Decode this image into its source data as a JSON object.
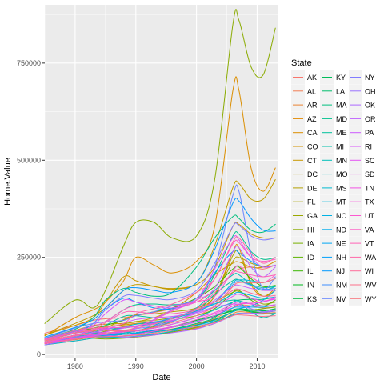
{
  "chart_data": {
    "type": "line",
    "xlabel": "Date",
    "ylabel": "Home.Value",
    "xlim": [
      1975,
      2013.5
    ],
    "ylim": [
      -10000,
      900000
    ],
    "x_ticks": [
      1980,
      1990,
      2000,
      2010
    ],
    "x_tick_labels": [
      "1980",
      "1990",
      "2000",
      "2010"
    ],
    "y_ticks": [
      0,
      250000,
      500000,
      750000
    ],
    "y_tick_labels": [
      "0",
      "250000",
      "500000",
      "750000"
    ],
    "grid": true,
    "legend": {
      "title": "State",
      "placement": "right",
      "columns": 3
    },
    "x": [
      1975,
      1980,
      1983,
      1985,
      1988,
      1990,
      1993,
      1996,
      2000,
      2003,
      2006,
      2007,
      2009,
      2011,
      2013
    ],
    "series": [
      {
        "name": "AK",
        "color": "#F8766D",
        "values": [
          55000,
          75000,
          88000,
          92000,
          95000,
          100000,
          108000,
          118000,
          135000,
          165000,
          210000,
          220000,
          225000,
          220000,
          230000
        ]
      },
      {
        "name": "AL",
        "color": "#F27D53",
        "values": [
          28000,
          38000,
          45000,
          48000,
          52000,
          56000,
          60000,
          66000,
          78000,
          92000,
          120000,
          128000,
          125000,
          120000,
          122000
        ]
      },
      {
        "name": "AR",
        "color": "#EA8331",
        "values": [
          25000,
          35000,
          42000,
          45000,
          48000,
          50000,
          53000,
          58000,
          68000,
          80000,
          105000,
          110000,
          108000,
          106000,
          108000
        ]
      },
      {
        "name": "AZ",
        "color": "#E38900",
        "values": [
          38000,
          58000,
          68000,
          72000,
          76000,
          80000,
          84000,
          92000,
          118000,
          150000,
          265000,
          275000,
          180000,
          150000,
          170000
        ]
      },
      {
        "name": "CA",
        "color": "#DB8E00",
        "values": [
          48000,
          95000,
          115000,
          135000,
          190000,
          250000,
          230000,
          210000,
          240000,
          330000,
          680000,
          680000,
          480000,
          420000,
          480000
        ]
      },
      {
        "name": "CO",
        "color": "#D39200",
        "values": [
          40000,
          62000,
          75000,
          78000,
          80000,
          84000,
          95000,
          115000,
          160000,
          205000,
          235000,
          238000,
          225000,
          225000,
          240000
        ]
      },
      {
        "name": "CT",
        "color": "#C99800",
        "values": [
          50000,
          75000,
          95000,
          135000,
          200000,
          190000,
          175000,
          170000,
          180000,
          225000,
          330000,
          335000,
          310000,
          300000,
          300000
        ]
      },
      {
        "name": "DC",
        "color": "#BF9C00",
        "values": [
          50000,
          80000,
          100000,
          120000,
          165000,
          180000,
          175000,
          168000,
          185000,
          280000,
          430000,
          440000,
          400000,
          400000,
          450000
        ]
      },
      {
        "name": "DE",
        "color": "#B3A000",
        "values": [
          35000,
          50000,
          60000,
          68000,
          90000,
          102000,
          105000,
          110000,
          120000,
          155000,
          240000,
          250000,
          235000,
          225000,
          230000
        ]
      },
      {
        "name": "FL",
        "color": "#A8A400",
        "values": [
          35000,
          55000,
          65000,
          70000,
          78000,
          85000,
          88000,
          95000,
          110000,
          150000,
          255000,
          260000,
          185000,
          150000,
          165000
        ]
      },
      {
        "name": "GA",
        "color": "#9AA800",
        "values": [
          30000,
          42000,
          52000,
          60000,
          72000,
          78000,
          82000,
          92000,
          112000,
          135000,
          160000,
          162000,
          145000,
          130000,
          135000
        ]
      },
      {
        "name": "HI",
        "color": "#8AAB00",
        "values": [
          80000,
          140000,
          120000,
          165000,
          280000,
          340000,
          340000,
          300000,
          305000,
          450000,
          850000,
          860000,
          740000,
          720000,
          840000
        ]
      },
      {
        "name": "IA",
        "color": "#77AF00",
        "values": [
          30000,
          45000,
          42000,
          40000,
          42000,
          45000,
          50000,
          58000,
          70000,
          85000,
          110000,
          115000,
          115000,
          118000,
          122000
        ]
      },
      {
        "name": "ID",
        "color": "#5EB300",
        "values": [
          32000,
          48000,
          52000,
          52000,
          55000,
          60000,
          72000,
          88000,
          100000,
          118000,
          160000,
          165000,
          140000,
          125000,
          140000
        ]
      },
      {
        "name": "IL",
        "color": "#39B600",
        "values": [
          38000,
          58000,
          68000,
          75000,
          88000,
          100000,
          110000,
          120000,
          145000,
          175000,
          220000,
          225000,
          195000,
          175000,
          178000
        ]
      },
      {
        "name": "IN",
        "color": "#00B81F",
        "values": [
          28000,
          40000,
          45000,
          48000,
          52000,
          56000,
          62000,
          72000,
          88000,
          100000,
          112000,
          115000,
          110000,
          108000,
          112000
        ]
      },
      {
        "name": "KS",
        "color": "#00BA42",
        "values": [
          28000,
          40000,
          48000,
          50000,
          52000,
          54000,
          58000,
          64000,
          76000,
          90000,
          110000,
          114000,
          112000,
          112000,
          118000
        ]
      },
      {
        "name": "KY",
        "color": "#00BC59",
        "values": [
          28000,
          40000,
          46000,
          48000,
          52000,
          56000,
          62000,
          70000,
          84000,
          98000,
          115000,
          118000,
          115000,
          113000,
          117000
        ]
      },
      {
        "name": "LA",
        "color": "#00BD6C",
        "values": [
          30000,
          45000,
          55000,
          56000,
          52000,
          54000,
          58000,
          65000,
          80000,
          95000,
          135000,
          140000,
          142000,
          142000,
          148000
        ]
      },
      {
        "name": "MA",
        "color": "#00BF7D",
        "values": [
          42000,
          65000,
          95000,
          140000,
          170000,
          160000,
          150000,
          160000,
          225000,
          300000,
          355000,
          350000,
          320000,
          315000,
          335000
        ]
      },
      {
        "name": "MD",
        "color": "#00C08D",
        "values": [
          40000,
          60000,
          72000,
          85000,
          115000,
          128000,
          130000,
          128000,
          140000,
          205000,
          305000,
          310000,
          265000,
          245000,
          250000
        ]
      },
      {
        "name": "ME",
        "color": "#00C19C",
        "values": [
          30000,
          42000,
          55000,
          75000,
          98000,
          100000,
          95000,
          95000,
          112000,
          155000,
          190000,
          192000,
          180000,
          172000,
          175000
        ]
      },
      {
        "name": "MI",
        "color": "#00C0AA",
        "values": [
          30000,
          45000,
          45000,
          48000,
          55000,
          62000,
          70000,
          85000,
          110000,
          130000,
          140000,
          135000,
          110000,
          95000,
          105000
        ]
      },
      {
        "name": "MN",
        "color": "#00BFB8",
        "values": [
          32000,
          50000,
          58000,
          62000,
          68000,
          72000,
          80000,
          92000,
          120000,
          165000,
          205000,
          205000,
          180000,
          165000,
          175000
        ]
      },
      {
        "name": "MO",
        "color": "#00BDC4",
        "values": [
          28000,
          42000,
          48000,
          52000,
          58000,
          62000,
          68000,
          78000,
          95000,
          115000,
          135000,
          138000,
          130000,
          125000,
          128000
        ]
      },
      {
        "name": "MS",
        "color": "#00BAD0",
        "values": [
          25000,
          35000,
          42000,
          44000,
          45000,
          47000,
          52000,
          60000,
          72000,
          84000,
          102000,
          106000,
          105000,
          104000,
          106000
        ]
      },
      {
        "name": "MT",
        "color": "#00B6DB",
        "values": [
          32000,
          48000,
          52000,
          52000,
          55000,
          60000,
          75000,
          92000,
          110000,
          135000,
          185000,
          192000,
          190000,
          185000,
          195000
        ]
      },
      {
        "name": "NC",
        "color": "#00B2E4",
        "values": [
          30000,
          42000,
          52000,
          58000,
          70000,
          78000,
          84000,
          92000,
          112000,
          130000,
          155000,
          160000,
          152000,
          145000,
          148000
        ]
      },
      {
        "name": "ND",
        "color": "#00ACED",
        "values": [
          30000,
          45000,
          50000,
          50000,
          52000,
          54000,
          58000,
          64000,
          75000,
          88000,
          110000,
          118000,
          125000,
          140000,
          165000
        ]
      },
      {
        "name": "NE",
        "color": "#00A6F4",
        "values": [
          28000,
          40000,
          46000,
          48000,
          52000,
          56000,
          62000,
          70000,
          85000,
          100000,
          120000,
          122000,
          122000,
          122000,
          128000
        ]
      },
      {
        "name": "NH",
        "color": "#009FFA",
        "values": [
          38000,
          55000,
          80000,
          115000,
          145000,
          135000,
          120000,
          118000,
          140000,
          210000,
          265000,
          262000,
          240000,
          225000,
          230000
        ]
      },
      {
        "name": "NJ",
        "color": "#0097FE",
        "values": [
          45000,
          70000,
          90000,
          120000,
          165000,
          172000,
          165000,
          160000,
          185000,
          270000,
          390000,
          395000,
          350000,
          320000,
          318000
        ]
      },
      {
        "name": "NM",
        "color": "#3F8FFF",
        "values": [
          32000,
          50000,
          62000,
          66000,
          70000,
          74000,
          82000,
          95000,
          115000,
          135000,
          180000,
          188000,
          178000,
          168000,
          170000
        ]
      },
      {
        "name": "NV",
        "color": "#6685FF",
        "values": [
          42000,
          68000,
          80000,
          84000,
          88000,
          100000,
          110000,
          125000,
          145000,
          225000,
          410000,
          420000,
          260000,
          170000,
          200000
        ]
      },
      {
        "name": "NY",
        "color": "#817CFF",
        "values": [
          40000,
          60000,
          80000,
          115000,
          150000,
          152000,
          145000,
          142000,
          165000,
          235000,
          330000,
          332000,
          305000,
          295000,
          300000
        ]
      },
      {
        "name": "OH",
        "color": "#9A72FF",
        "values": [
          30000,
          45000,
          48000,
          52000,
          60000,
          66000,
          74000,
          86000,
          108000,
          122000,
          130000,
          128000,
          118000,
          110000,
          115000
        ]
      },
      {
        "name": "OK",
        "color": "#AD68FF",
        "values": [
          25000,
          40000,
          50000,
          50000,
          45000,
          46000,
          50000,
          56000,
          66000,
          80000,
          100000,
          105000,
          106000,
          108000,
          112000
        ]
      },
      {
        "name": "OR",
        "color": "#BE60FF",
        "values": [
          35000,
          55000,
          58000,
          56000,
          60000,
          70000,
          90000,
          115000,
          140000,
          170000,
          265000,
          275000,
          225000,
          200000,
          225000
        ]
      },
      {
        "name": "PA",
        "color": "#CD5AFE",
        "values": [
          32000,
          48000,
          56000,
          64000,
          80000,
          90000,
          95000,
          98000,
          110000,
          140000,
          175000,
          178000,
          170000,
          165000,
          165000
        ]
      },
      {
        "name": "RI",
        "color": "#D957F9",
        "values": [
          38000,
          55000,
          75000,
          105000,
          140000,
          135000,
          125000,
          120000,
          140000,
          220000,
          300000,
          295000,
          250000,
          225000,
          230000
        ]
      },
      {
        "name": "SC",
        "color": "#E454F3",
        "values": [
          30000,
          42000,
          52000,
          58000,
          68000,
          74000,
          80000,
          88000,
          105000,
          122000,
          150000,
          155000,
          145000,
          138000,
          142000
        ]
      },
      {
        "name": "SD",
        "color": "#EC52EC",
        "values": [
          28000,
          42000,
          46000,
          46000,
          48000,
          52000,
          60000,
          70000,
          84000,
          100000,
          125000,
          130000,
          132000,
          135000,
          145000
        ]
      },
      {
        "name": "TN",
        "color": "#F352E4",
        "values": [
          28000,
          40000,
          48000,
          52000,
          58000,
          62000,
          68000,
          78000,
          95000,
          108000,
          130000,
          135000,
          130000,
          125000,
          128000
        ]
      },
      {
        "name": "TX",
        "color": "#F854DB",
        "values": [
          30000,
          48000,
          62000,
          65000,
          60000,
          60000,
          64000,
          72000,
          90000,
          105000,
          125000,
          130000,
          132000,
          135000,
          148000
        ]
      },
      {
        "name": "UT",
        "color": "#FC58D0",
        "values": [
          35000,
          55000,
          65000,
          68000,
          70000,
          72000,
          88000,
          112000,
          135000,
          150000,
          215000,
          228000,
          200000,
          185000,
          205000
        ]
      },
      {
        "name": "VA",
        "color": "#FE5DC4",
        "values": [
          38000,
          58000,
          72000,
          85000,
          115000,
          125000,
          125000,
          125000,
          140000,
          195000,
          285000,
          288000,
          250000,
          240000,
          245000
        ]
      },
      {
        "name": "VT",
        "color": "#FF62B7",
        "values": [
          35000,
          50000,
          62000,
          82000,
          108000,
          110000,
          105000,
          105000,
          118000,
          160000,
          210000,
          212000,
          205000,
          200000,
          205000
        ]
      },
      {
        "name": "WA",
        "color": "#FF67A9",
        "values": [
          40000,
          62000,
          68000,
          70000,
          80000,
          105000,
          118000,
          130000,
          160000,
          195000,
          290000,
          300000,
          260000,
          235000,
          250000
        ]
      },
      {
        "name": "WI",
        "color": "#FE6C9A",
        "values": [
          32000,
          48000,
          52000,
          55000,
          62000,
          68000,
          78000,
          92000,
          115000,
          135000,
          165000,
          168000,
          158000,
          150000,
          152000
        ]
      },
      {
        "name": "WV",
        "color": "#FC708B",
        "values": [
          28000,
          40000,
          45000,
          46000,
          48000,
          50000,
          55000,
          62000,
          72000,
          82000,
          100000,
          102000,
          100000,
          98000,
          100000
        ]
      },
      {
        "name": "WY",
        "color": "#F8747C",
        "values": [
          35000,
          55000,
          62000,
          62000,
          60000,
          62000,
          70000,
          82000,
          100000,
          125000,
          175000,
          185000,
          185000,
          185000,
          195000
        ]
      }
    ]
  }
}
